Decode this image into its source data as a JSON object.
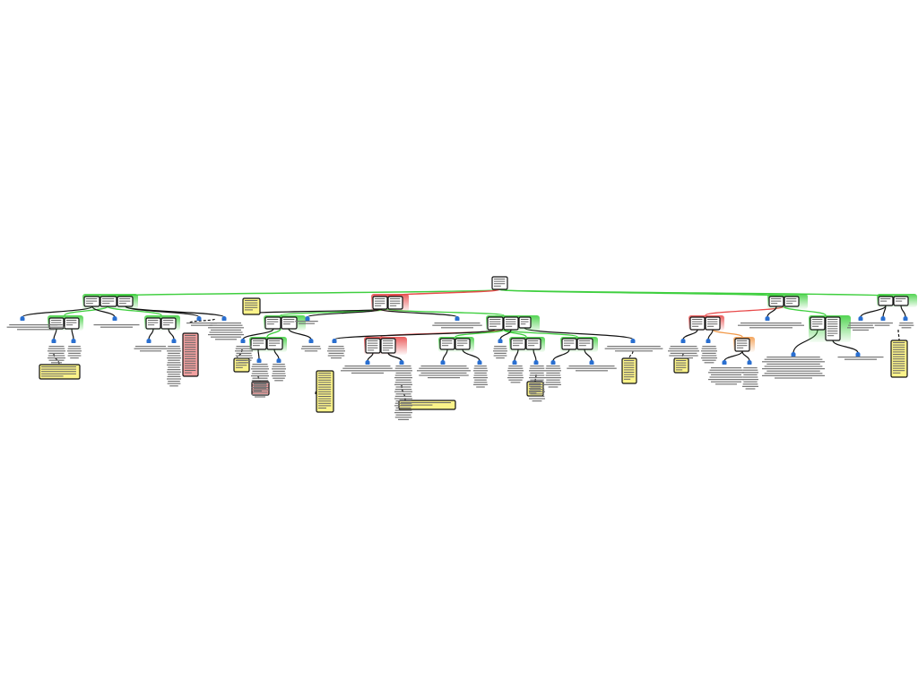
{
  "diagram": {
    "type": "argument-map",
    "layout": "top-down tree",
    "node_kinds": [
      "claim",
      "note",
      "objection",
      "reason-icon"
    ],
    "colors": {
      "support": "#3fcf3f",
      "oppose": "#e84a4a",
      "qualifier": "#f29a4a",
      "claim_fill": "#ffffff",
      "claim_border": "#111111",
      "note_fill": "#fbf38a",
      "objection_fill": "#f2a0a0",
      "icon": "#2a6fd0",
      "text": "#777777",
      "connector": "#111111"
    },
    "icons": [
      "reason-icon"
    ]
  }
}
